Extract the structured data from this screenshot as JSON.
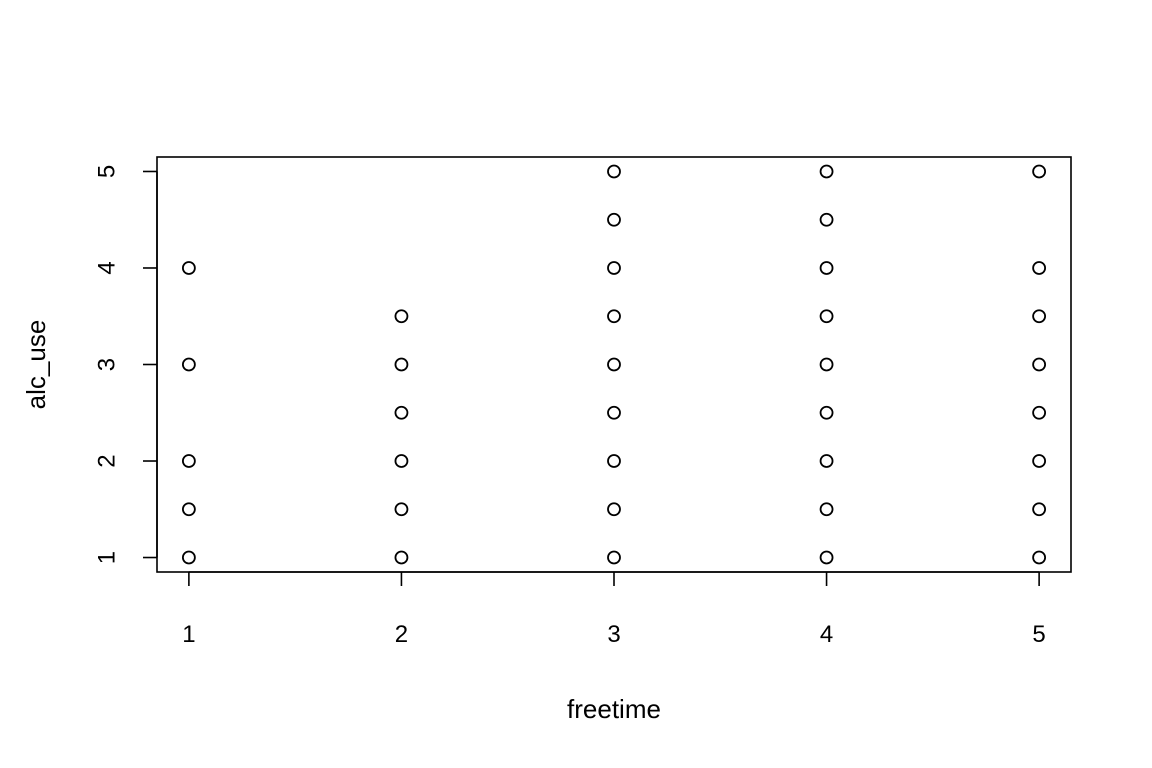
{
  "chart_data": {
    "type": "scatter",
    "title": "",
    "xlabel": "freetime",
    "ylabel": "alc_use",
    "xlim": [
      0.85,
      5.15
    ],
    "ylim": [
      0.85,
      5.15
    ],
    "x_ticks": [
      1,
      2,
      3,
      4,
      5
    ],
    "y_ticks": [
      1,
      2,
      3,
      4,
      5
    ],
    "x_tick_labels": [
      "1",
      "2",
      "3",
      "4",
      "5"
    ],
    "y_tick_labels": [
      "1",
      "2",
      "3",
      "4",
      "5"
    ],
    "grid": false,
    "legend": "none",
    "marker": "open-circle",
    "color": "#000000",
    "points": [
      {
        "x": 1,
        "y": 1
      },
      {
        "x": 1,
        "y": 1.5
      },
      {
        "x": 1,
        "y": 2
      },
      {
        "x": 1,
        "y": 3
      },
      {
        "x": 1,
        "y": 4
      },
      {
        "x": 2,
        "y": 1
      },
      {
        "x": 2,
        "y": 1.5
      },
      {
        "x": 2,
        "y": 2
      },
      {
        "x": 2,
        "y": 2.5
      },
      {
        "x": 2,
        "y": 3
      },
      {
        "x": 2,
        "y": 3.5
      },
      {
        "x": 3,
        "y": 1
      },
      {
        "x": 3,
        "y": 1.5
      },
      {
        "x": 3,
        "y": 2
      },
      {
        "x": 3,
        "y": 2.5
      },
      {
        "x": 3,
        "y": 3
      },
      {
        "x": 3,
        "y": 3.5
      },
      {
        "x": 3,
        "y": 4
      },
      {
        "x": 3,
        "y": 4.5
      },
      {
        "x": 3,
        "y": 5
      },
      {
        "x": 4,
        "y": 1
      },
      {
        "x": 4,
        "y": 1.5
      },
      {
        "x": 4,
        "y": 2
      },
      {
        "x": 4,
        "y": 2.5
      },
      {
        "x": 4,
        "y": 3
      },
      {
        "x": 4,
        "y": 3.5
      },
      {
        "x": 4,
        "y": 4
      },
      {
        "x": 4,
        "y": 4.5
      },
      {
        "x": 4,
        "y": 5
      },
      {
        "x": 5,
        "y": 1
      },
      {
        "x": 5,
        "y": 1.5
      },
      {
        "x": 5,
        "y": 2
      },
      {
        "x": 5,
        "y": 2.5
      },
      {
        "x": 5,
        "y": 3
      },
      {
        "x": 5,
        "y": 3.5
      },
      {
        "x": 5,
        "y": 4
      },
      {
        "x": 5,
        "y": 5
      }
    ]
  }
}
